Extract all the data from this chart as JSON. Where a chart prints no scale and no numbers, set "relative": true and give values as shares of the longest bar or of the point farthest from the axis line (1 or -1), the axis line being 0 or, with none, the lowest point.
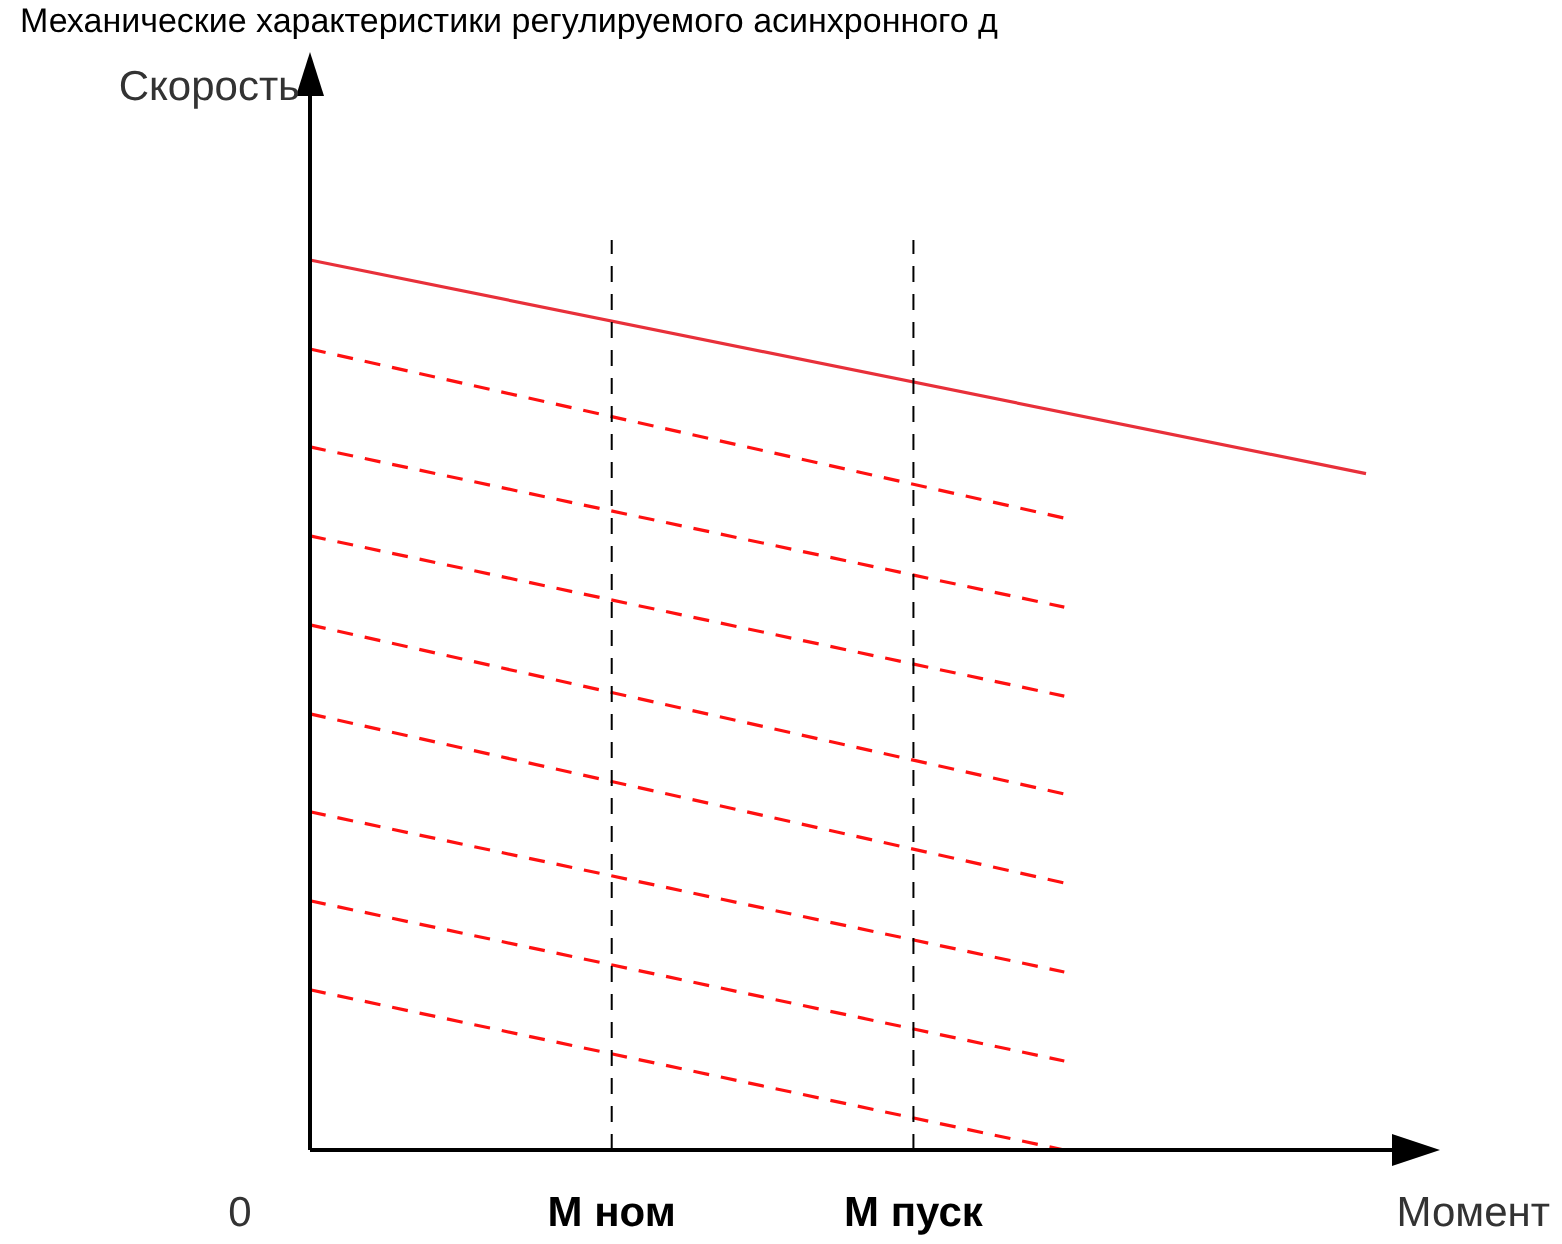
{
  "chart_data": {
    "type": "line",
    "title": "Механические характеристики регулируемого асинхронного д",
    "xlabel": "Момент",
    "ylabel": "Скорость",
    "relative": true,
    "annotations": [
      "0"
    ],
    "marker": "none",
    "categories": [
      null,
      null,
      "М ном",
      null,
      "М пуск",
      null,
      null,
      null
    ],
    "series": [
      {
        "color": "#e8303a",
        "line_style": "solid",
        "values": [
          1,
          null,
          null,
          null,
          null,
          null,
          null,
          0.76
        ]
      },
      {
        "color": "#ff1010",
        "line_style": "dashed",
        "values": [
          0.9,
          null,
          null,
          null,
          null,
          0.71,
          null,
          null
        ]
      },
      {
        "color": "#ff1010",
        "line_style": "dashed",
        "values": [
          0.79,
          null,
          null,
          null,
          null,
          0.61,
          null,
          null
        ]
      },
      {
        "color": "#ff1010",
        "line_style": "dashed",
        "values": [
          0.69,
          null,
          null,
          null,
          null,
          0.51,
          null,
          null
        ]
      },
      {
        "color": "#ff1010",
        "line_style": "dashed",
        "values": [
          0.59,
          null,
          null,
          null,
          null,
          0.4,
          null,
          null
        ]
      },
      {
        "color": "#ff1010",
        "line_style": "dashed",
        "values": [
          0.49,
          null,
          null,
          null,
          null,
          0.3,
          null,
          null
        ]
      },
      {
        "color": "#ff1010",
        "line_style": "dashed",
        "values": [
          0.38,
          null,
          null,
          null,
          null,
          0.2,
          null,
          null
        ]
      },
      {
        "color": "#ff1010",
        "line_style": "dashed",
        "values": [
          0.28,
          null,
          null,
          null,
          null,
          0.1,
          null,
          null
        ]
      },
      {
        "color": "#ff1010",
        "line_style": "dashed",
        "values": [
          0.18,
          null,
          null,
          null,
          null,
          0,
          null,
          null
        ]
      }
    ]
  }
}
